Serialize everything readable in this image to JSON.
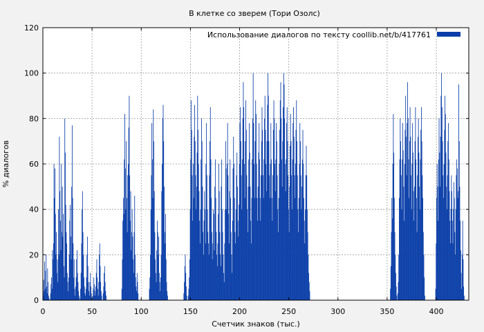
{
  "chart_data": {
    "type": "bar",
    "title": "В клетке со зверем (Тори Озолс)",
    "xlabel": "Счетчик знаков (тыс.)",
    "ylabel": "% диалогов",
    "xlim": [
      0,
      433
    ],
    "ylim": [
      0,
      120
    ],
    "xticks": [
      0,
      50,
      100,
      150,
      200,
      250,
      300,
      350,
      400
    ],
    "yticks": [
      0,
      20,
      40,
      60,
      80,
      100,
      120
    ],
    "grid": true,
    "legend_position": "top-right",
    "series": [
      {
        "name": "Использование диалогов по тексту  coollib.net/b/417761",
        "color": "#0a3ea8",
        "bin_width": 0.5,
        "segments": [
          {
            "x": 0,
            "values": [
              2,
              9,
              4,
              17,
              5,
              13,
              20,
              6,
              3,
              14,
              8,
              2,
              1,
              0,
              0,
              3,
              7,
              10,
              5,
              22,
              18,
              25,
              60,
              45,
              58,
              38,
              20,
              30,
              12,
              18,
              8,
              40,
              20,
              72,
              48,
              35,
              22,
              60,
              30,
              50,
              28,
              38,
              15,
              10,
              80,
              65,
              42,
              30,
              25,
              12,
              8,
              4,
              10,
              20,
              35,
              42,
              28,
              18,
              50,
              77,
              45,
              25,
              10,
              18,
              5,
              2,
              6,
              10,
              18,
              22,
              12,
              8,
              4,
              2,
              1,
              0
            ]
          },
          {
            "x": 38,
            "values": [
              5,
              12,
              25,
              40,
              48,
              30,
              20,
              10,
              6,
              3,
              2,
              5,
              10,
              20,
              28,
              15,
              8,
              4,
              2,
              8,
              12,
              6,
              3,
              1,
              0,
              2,
              5,
              10,
              7,
              4,
              2,
              6,
              12,
              18,
              10,
              5,
              2,
              8,
              20,
              25,
              15,
              8,
              4,
              2,
              0,
              0,
              3,
              6,
              12,
              15,
              8,
              4,
              2,
              0
            ]
          },
          {
            "x": 80,
            "values": [
              5,
              18,
              35,
              45,
              38,
              62,
              82,
              58,
              40,
              70,
              45,
              30,
              55,
              60,
              76,
              90,
              55,
              35,
              48,
              22,
              30,
              40,
              28,
              18,
              12,
              30,
              46,
              20,
              10,
              6,
              4,
              12,
              8,
              3,
              0,
              0
            ]
          },
          {
            "x": 108,
            "values": [
              5,
              10,
              20,
              40,
              55,
              78,
              62,
              45,
              84,
              70,
              48,
              30,
              18,
              12,
              8,
              22,
              35,
              30,
              20,
              28,
              12,
              8,
              4,
              10,
              20,
              48,
              60,
              80,
              86,
              70,
              50,
              30,
              25,
              38,
              18,
              8,
              4,
              2,
              0
            ]
          },
          {
            "x": 143,
            "values": [
              3,
              8,
              15,
              20,
              12,
              6,
              2,
              0,
              0,
              2,
              5,
              10,
              18,
              40,
              62,
              88,
              75,
              55,
              35,
              60,
              45,
              72,
              86,
              70,
              55,
              40,
              50,
              65,
              90,
              75,
              60,
              48,
              35,
              25,
              40,
              62,
              80,
              70,
              50,
              30,
              20,
              35,
              48,
              40,
              25,
              60,
              78,
              55,
              40,
              30,
              25,
              20,
              55,
              70,
              85,
              62,
              45,
              30,
              18,
              25,
              40,
              38,
              22,
              50,
              62,
              45,
              30,
              20,
              15,
              25,
              38,
              60,
              48,
              30,
              20,
              15,
              50,
              62,
              40,
              30,
              20,
              12,
              8,
              25,
              40,
              70,
              58,
              40,
              60,
              78,
              55,
              38,
              25,
              48,
              62,
              45,
              30,
              20,
              12,
              35,
              58,
              72,
              60,
              45,
              30,
              25,
              40,
              55,
              65,
              50,
              35,
              28,
              42,
              60,
              78,
              85,
              70,
              55,
              40,
              62,
              80,
              96,
              85,
              60,
              45,
              70,
              88,
              75,
              55,
              40,
              30,
              50,
              62,
              78,
              65,
              50,
              35,
              25,
              45,
              62,
              80,
              100,
              78,
              60,
              45,
              70,
              88,
              82,
              60,
              45,
              35,
              50,
              65,
              78,
              62,
              45,
              35,
              55,
              70,
              85,
              75,
              55,
              45,
              62,
              80,
              90,
              75,
              60,
              48,
              70,
              86,
              100,
              90,
              70,
              55,
              45,
              60,
              78,
              62,
              45,
              35,
              55,
              75,
              88,
              80,
              60,
              48,
              62,
              78,
              70,
              55,
              40,
              30,
              45,
              60,
              75,
              88,
              96,
              80,
              62,
              50,
              70,
              85,
              100,
              95,
              80,
              60,
              48,
              62,
              78,
              85,
              70,
              55,
              40,
              30,
              50,
              68,
              82,
              70,
              55,
              40,
              62,
              78,
              85,
              72,
              55,
              45,
              60,
              75,
              88,
              70,
              55,
              40,
              30,
              45,
              60,
              78,
              70,
              55,
              40,
              50,
              62,
              75,
              60,
              45,
              35,
              25,
              40,
              55,
              68,
              55,
              40,
              30,
              20,
              12,
              8,
              4,
              0
            ]
          },
          {
            "x": 353,
            "values": [
              5,
              15,
              30,
              45,
              36,
              60,
              82,
              65,
              45,
              30,
              20,
              12,
              6,
              2,
              0,
              3,
              8,
              20,
              45,
              62,
              80,
              70,
              55,
              40,
              62,
              78,
              66,
              50,
              35,
              60,
              75,
              90,
              72,
              55,
              78,
              96,
              80,
              62,
              45,
              70,
              85,
              72,
              55,
              40,
              60,
              78,
              65,
              48,
              35,
              50,
              70,
              85,
              62,
              45,
              30,
              55,
              72,
              80,
              65,
              50,
              40,
              62,
              75,
              85,
              70,
              55,
              45,
              30,
              20,
              10,
              2,
              0,
              0
            ]
          },
          {
            "x": 399,
            "values": [
              5,
              25,
              45,
              60,
              50,
              35,
              62,
              80,
              65,
              50,
              72,
              90,
              100,
              85,
              70,
              55,
              45,
              60,
              75,
              90,
              82,
              65,
              50,
              40,
              55,
              70,
              78,
              62,
              48,
              35,
              25,
              40,
              55,
              48,
              35,
              25,
              40,
              52,
              45,
              30,
              20,
              40,
              55,
              62,
              58,
              45,
              48,
              95,
              70,
              50,
              35,
              22,
              12,
              5,
              20,
              35,
              18,
              6,
              2,
              0
            ]
          }
        ]
      }
    ]
  }
}
